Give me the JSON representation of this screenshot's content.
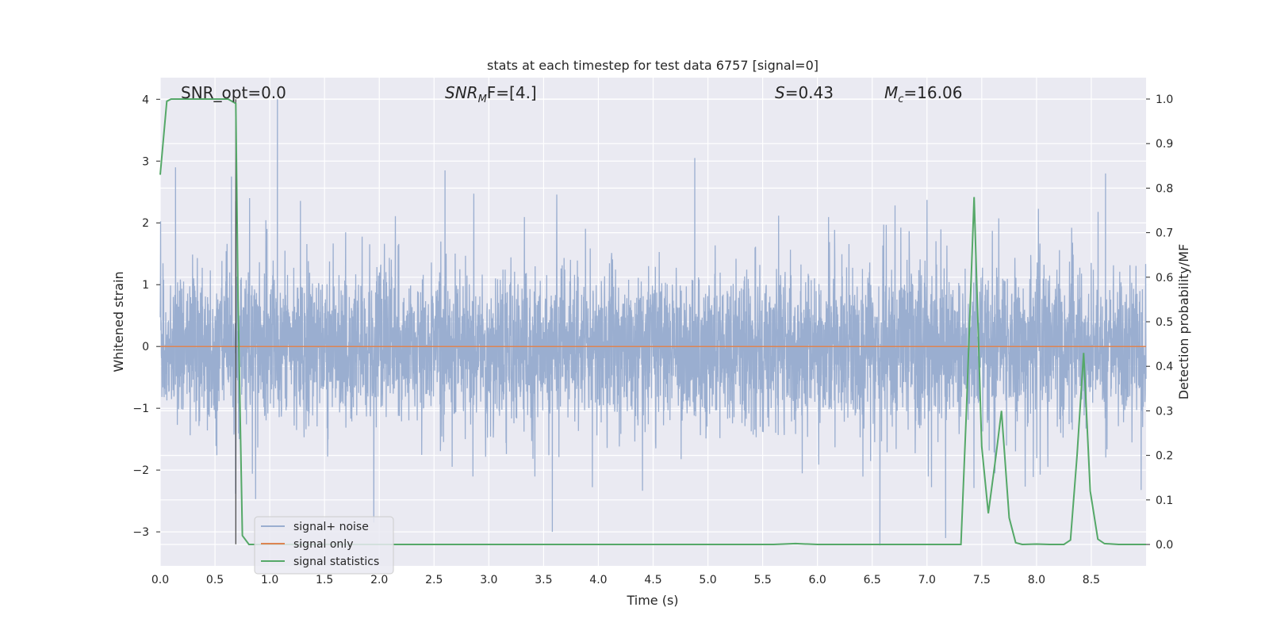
{
  "chart_data": {
    "type": "line",
    "title": "stats at each timestep for test data 6757 [signal=0]",
    "xlabel": "Time (s)",
    "ylabel": "Whitened strain",
    "y2label": "Detection probability/MF",
    "xlim": [
      0.0,
      9.0
    ],
    "ylim": [
      -3.55,
      4.35
    ],
    "y2lim": [
      -0.048,
      1.048
    ],
    "xticks": [
      0.0,
      0.5,
      1.0,
      1.5,
      2.0,
      2.5,
      3.0,
      3.5,
      4.0,
      4.5,
      5.0,
      5.5,
      6.0,
      6.5,
      7.0,
      7.5,
      8.0,
      8.5
    ],
    "xtick_labels": [
      "0.0",
      "0.5",
      "1.0",
      "1.5",
      "2.0",
      "2.5",
      "3.0",
      "3.5",
      "4.0",
      "4.5",
      "5.0",
      "5.5",
      "6.0",
      "6.5",
      "7.0",
      "7.5",
      "8.0",
      "8.5"
    ],
    "yticks": [
      -3,
      -2,
      -1,
      0,
      1,
      2,
      3,
      4
    ],
    "ytick_labels": [
      "−3",
      "−2",
      "−1",
      "0",
      "1",
      "2",
      "3",
      "4"
    ],
    "y2ticks": [
      0.0,
      0.1,
      0.2,
      0.3,
      0.4,
      0.5,
      0.6,
      0.7,
      0.8,
      0.9,
      1.0
    ],
    "y2tick_labels": [
      "0.0",
      "0.1",
      "0.2",
      "0.3",
      "0.4",
      "0.5",
      "0.6",
      "0.7",
      "0.8",
      "0.9",
      "1.0"
    ],
    "grid": true,
    "legend_position": "lower-left",
    "vline_x": 0.69,
    "annotations": {
      "snr_opt": "SNR_opt=0.0",
      "snr_mf_main": "SNR",
      "snr_mf_sub": "M",
      "snr_mf_rest": "F=[4.]",
      "s_main": "S",
      "s_rest": "=0.43",
      "mc_main": "M",
      "mc_sub": "c",
      "mc_rest": "=16.06"
    },
    "series": [
      {
        "name": "signal+ noise",
        "color": "#9aaed0",
        "axis": "left",
        "kind": "noise",
        "description_values": {
          "sample_rate": 2048,
          "typical_abs_max": 1.8,
          "peaks": [
            [
              0.65,
              2.75
            ],
            [
              1.07,
              4.0
            ],
            [
              4.88,
              3.05
            ],
            [
              0.14,
              2.9
            ],
            [
              2.6,
              2.85
            ],
            [
              3.58,
              -3.0
            ],
            [
              6.57,
              -3.22
            ],
            [
              7.17,
              -3.1
            ],
            [
              1.95,
              -2.85
            ],
            [
              8.63,
              2.8
            ]
          ]
        }
      },
      {
        "name": "signal only",
        "color": "#dd8452",
        "axis": "left",
        "x": [
          0.0,
          9.0
        ],
        "values": [
          0.0,
          0.0
        ]
      },
      {
        "name": "signal statistics",
        "color": "#55a868",
        "axis": "right",
        "x": [
          0.0,
          0.06,
          0.1,
          0.5,
          0.62,
          0.69,
          0.71,
          0.75,
          0.81,
          1.0,
          2.0,
          3.0,
          4.0,
          5.0,
          5.6,
          5.8,
          6.0,
          7.0,
          7.31,
          7.36,
          7.43,
          7.5,
          7.56,
          7.63,
          7.68,
          7.75,
          7.81,
          7.87,
          8.0,
          8.12,
          8.25,
          8.31,
          8.37,
          8.43,
          8.49,
          8.56,
          8.62,
          8.75,
          9.0
        ],
        "values": [
          0.83,
          0.995,
          1.0,
          1.0,
          1.0,
          0.99,
          0.55,
          0.02,
          0.0,
          0.0,
          0.0,
          0.0,
          0.0,
          0.0,
          0.0,
          0.002,
          0.0,
          0.0,
          0.0,
          0.3,
          0.78,
          0.22,
          0.07,
          0.2,
          0.3,
          0.06,
          0.004,
          0.0,
          0.001,
          0.0,
          0.0,
          0.01,
          0.2,
          0.43,
          0.12,
          0.012,
          0.002,
          0.0,
          0.0
        ]
      }
    ]
  }
}
